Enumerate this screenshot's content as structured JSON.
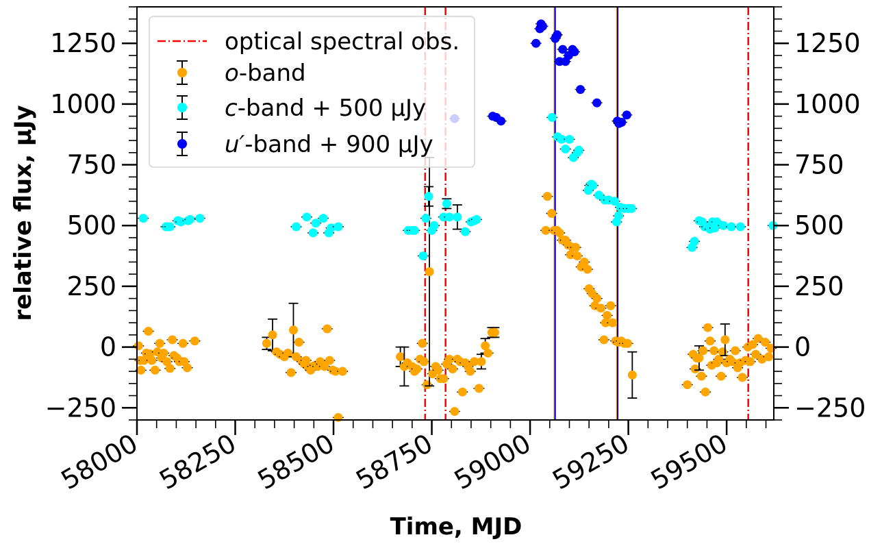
{
  "chart_data": {
    "type": "scatter",
    "xlabel": "Time, MJD",
    "ylabel": "relative flux, μJy",
    "xlim": [
      58000,
      59620
    ],
    "ylim": [
      -300,
      1400
    ],
    "x_ticks": [
      58000,
      58250,
      58500,
      58750,
      59000,
      59250,
      59500
    ],
    "y_ticks": [
      -250,
      0,
      250,
      500,
      750,
      1000,
      1250
    ],
    "legend_position": "top-left",
    "grid": false,
    "colors": {
      "o": "#ffa500",
      "c": "#00ffff",
      "u": "#0000ff",
      "spec": "#ff0000",
      "mark": "#0000ff"
    },
    "spectral_obs_label": "optical spectral obs.",
    "spectral_obs_mjd": [
      58733,
      58785,
      59555
    ],
    "vertical_lines_mjd": [
      59063,
      59222
    ],
    "series": [
      {
        "key": "o",
        "legend_pre": "",
        "legend_em": "o",
        "legend_post": "-band",
        "points": [
          [
            58004,
            5,
            10
          ],
          [
            58008,
            -55,
            10
          ],
          [
            58010,
            -95,
            10
          ],
          [
            58018,
            -55,
            10
          ],
          [
            58024,
            -25,
            10
          ],
          [
            58029,
            65,
            10
          ],
          [
            58033,
            -28,
            10
          ],
          [
            58038,
            -55,
            10
          ],
          [
            58046,
            -95,
            10
          ],
          [
            58052,
            -20,
            10
          ],
          [
            58058,
            15,
            10
          ],
          [
            58063,
            -45,
            10
          ],
          [
            58068,
            -25,
            10
          ],
          [
            58076,
            -60,
            10
          ],
          [
            58084,
            -88,
            10
          ],
          [
            58090,
            30,
            10
          ],
          [
            58094,
            -35,
            10
          ],
          [
            58102,
            -45,
            10
          ],
          [
            58108,
            -60,
            10
          ],
          [
            58117,
            15,
            10
          ],
          [
            58120,
            -60,
            10
          ],
          [
            58128,
            -85,
            10
          ],
          [
            58147,
            25,
            10
          ],
          [
            58330,
            15,
            25
          ],
          [
            58345,
            50,
            65
          ],
          [
            58355,
            -20,
            10
          ],
          [
            58364,
            -30,
            10
          ],
          [
            58375,
            -40,
            10
          ],
          [
            58384,
            -25,
            10
          ],
          [
            58392,
            -105,
            10
          ],
          [
            58398,
            70,
            110
          ],
          [
            58405,
            -40,
            10
          ],
          [
            58412,
            20,
            10
          ],
          [
            58420,
            -60,
            10
          ],
          [
            58426,
            -70,
            10
          ],
          [
            58430,
            -55,
            10
          ],
          [
            58436,
            -85,
            10
          ],
          [
            58442,
            -95,
            10
          ],
          [
            58447,
            -80,
            10
          ],
          [
            58453,
            -75,
            10
          ],
          [
            58460,
            -80,
            10
          ],
          [
            58466,
            -60,
            10
          ],
          [
            58470,
            -70,
            10
          ],
          [
            58477,
            -80,
            10
          ],
          [
            58484,
            75,
            10
          ],
          [
            58490,
            -55,
            10
          ],
          [
            58498,
            -95,
            10
          ],
          [
            58505,
            -100,
            15
          ],
          [
            58512,
            -290,
            12
          ],
          [
            58523,
            -100,
            15
          ],
          [
            58670,
            -40,
            40
          ],
          [
            58680,
            -80,
            80
          ],
          [
            58688,
            -65,
            10
          ],
          [
            58700,
            -80,
            10
          ],
          [
            58706,
            -100,
            10
          ],
          [
            58712,
            -90,
            10
          ],
          [
            58720,
            -50,
            10
          ],
          [
            58726,
            15,
            10
          ],
          [
            58730,
            -60,
            10
          ],
          [
            58738,
            -155,
            10
          ],
          [
            58744,
            310,
            470
          ],
          [
            58752,
            -110,
            10
          ],
          [
            58760,
            -80,
            10
          ],
          [
            58766,
            -95,
            10
          ],
          [
            58772,
            -130,
            10
          ],
          [
            58780,
            -130,
            10
          ],
          [
            58788,
            -70,
            10
          ],
          [
            58795,
            -50,
            10
          ],
          [
            58803,
            -90,
            10
          ],
          [
            58808,
            -265,
            10
          ],
          [
            58815,
            -50,
            10
          ],
          [
            58822,
            -60,
            10
          ],
          [
            58828,
            -185,
            10
          ],
          [
            58835,
            -65,
            10
          ],
          [
            58842,
            -80,
            10
          ],
          [
            58848,
            -100,
            10
          ],
          [
            58858,
            -60,
            10
          ],
          [
            58870,
            -170,
            10
          ],
          [
            58876,
            -60,
            30
          ],
          [
            58886,
            5,
            30
          ],
          [
            58893,
            -25,
            10
          ],
          [
            58903,
            60,
            20
          ],
          [
            58910,
            60,
            20
          ],
          [
            59040,
            480,
            10
          ],
          [
            59044,
            620,
            10
          ],
          [
            59055,
            550,
            10
          ],
          [
            59061,
            480,
            10
          ],
          [
            59068,
            480,
            10
          ],
          [
            59075,
            470,
            10
          ],
          [
            59082,
            440,
            10
          ],
          [
            59090,
            440,
            10
          ],
          [
            59097,
            420,
            10
          ],
          [
            59103,
            380,
            10
          ],
          [
            59108,
            410,
            10
          ],
          [
            59116,
            410,
            10
          ],
          [
            59120,
            375,
            10
          ],
          [
            59130,
            330,
            10
          ],
          [
            59138,
            350,
            10
          ],
          [
            59146,
            320,
            10
          ],
          [
            59150,
            240,
            10
          ],
          [
            59158,
            220,
            10
          ],
          [
            59165,
            170,
            10
          ],
          [
            59170,
            200,
            10
          ],
          [
            59180,
            160,
            10
          ],
          [
            59188,
            30,
            10
          ],
          [
            59192,
            100,
            10
          ],
          [
            59196,
            130,
            10
          ],
          [
            59205,
            170,
            10
          ],
          [
            59210,
            100,
            10
          ],
          [
            59218,
            25,
            10
          ],
          [
            59225,
            20,
            10
          ],
          [
            59232,
            25,
            10
          ],
          [
            59240,
            15,
            10
          ],
          [
            59248,
            15,
            10
          ],
          [
            59260,
            -115,
            95
          ],
          [
            59400,
            -155,
            10
          ],
          [
            59415,
            -30,
            10
          ],
          [
            59420,
            -90,
            10
          ],
          [
            59424,
            -45,
            10
          ],
          [
            59430,
            -45,
            50
          ],
          [
            59436,
            -120,
            10
          ],
          [
            59440,
            -15,
            10
          ],
          [
            59446,
            -185,
            10
          ],
          [
            59452,
            80,
            10
          ],
          [
            59458,
            25,
            10
          ],
          [
            59462,
            -75,
            10
          ],
          [
            59468,
            -15,
            10
          ],
          [
            59475,
            -65,
            10
          ],
          [
            59480,
            -50,
            10
          ],
          [
            59486,
            -120,
            10
          ],
          [
            59490,
            -20,
            10
          ],
          [
            59496,
            30,
            65
          ],
          [
            59500,
            -65,
            10
          ],
          [
            59508,
            -50,
            10
          ],
          [
            59514,
            -60,
            10
          ],
          [
            59522,
            -15,
            10
          ],
          [
            59528,
            -85,
            10
          ],
          [
            59534,
            -65,
            10
          ],
          [
            59540,
            -125,
            10
          ],
          [
            59548,
            -55,
            10
          ],
          [
            59554,
            0,
            10
          ],
          [
            59560,
            -60,
            10
          ],
          [
            59566,
            10,
            10
          ],
          [
            59574,
            -30,
            10
          ],
          [
            59580,
            35,
            10
          ],
          [
            59590,
            -50,
            10
          ],
          [
            59598,
            20,
            10
          ],
          [
            59607,
            -40,
            10
          ],
          [
            59613,
            -5,
            10
          ]
        ]
      },
      {
        "key": "c",
        "legend_pre": "",
        "legend_em": "c",
        "legend_post": "-band + 500 μJy",
        "points": [
          [
            58016,
            530,
            10
          ],
          [
            58074,
            495,
            10
          ],
          [
            58078,
            495,
            10
          ],
          [
            58084,
            495,
            10
          ],
          [
            58104,
            520,
            10
          ],
          [
            58112,
            515,
            10
          ],
          [
            58130,
            520,
            10
          ],
          [
            58135,
            525,
            10
          ],
          [
            58160,
            530,
            10
          ],
          [
            58405,
            495,
            10
          ],
          [
            58432,
            535,
            10
          ],
          [
            58448,
            470,
            10
          ],
          [
            58455,
            510,
            10
          ],
          [
            58474,
            530,
            10
          ],
          [
            58488,
            470,
            15
          ],
          [
            58494,
            490,
            10
          ],
          [
            58512,
            495,
            10
          ],
          [
            58690,
            480,
            10
          ],
          [
            58700,
            480,
            10
          ],
          [
            58706,
            480,
            10
          ],
          [
            58728,
            375,
            15
          ],
          [
            58735,
            530,
            10
          ],
          [
            58742,
            620,
            40
          ],
          [
            58750,
            480,
            10
          ],
          [
            58756,
            500,
            10
          ],
          [
            58780,
            535,
            10
          ],
          [
            58788,
            590,
            20
          ],
          [
            58795,
            535,
            10
          ],
          [
            58815,
            535,
            50
          ],
          [
            58835,
            475,
            10
          ],
          [
            58850,
            515,
            10
          ],
          [
            58858,
            520,
            10
          ],
          [
            58864,
            525,
            10
          ],
          [
            59056,
            945,
            10
          ],
          [
            59070,
            865,
            10
          ],
          [
            59080,
            855,
            10
          ],
          [
            59090,
            815,
            10
          ],
          [
            59100,
            855,
            10
          ],
          [
            59110,
            780,
            10
          ],
          [
            59120,
            800,
            10
          ],
          [
            59124,
            810,
            10
          ],
          [
            59148,
            645,
            10
          ],
          [
            59152,
            665,
            10
          ],
          [
            59156,
            670,
            10
          ],
          [
            59160,
            665,
            10
          ],
          [
            59175,
            625,
            10
          ],
          [
            59190,
            605,
            10
          ],
          [
            59200,
            605,
            10
          ],
          [
            59215,
            600,
            10
          ],
          [
            59220,
            515,
            10
          ],
          [
            59225,
            540,
            10
          ],
          [
            59230,
            575,
            10
          ],
          [
            59240,
            570,
            10
          ],
          [
            59250,
            570,
            10
          ],
          [
            59258,
            570,
            10
          ],
          [
            59412,
            410,
            10
          ],
          [
            59418,
            435,
            10
          ],
          [
            59430,
            520,
            10
          ],
          [
            59438,
            515,
            10
          ],
          [
            59444,
            495,
            10
          ],
          [
            59450,
            495,
            10
          ],
          [
            59458,
            485,
            10
          ],
          [
            59464,
            515,
            10
          ],
          [
            59470,
            490,
            10
          ],
          [
            59475,
            515,
            10
          ],
          [
            59492,
            500,
            10
          ],
          [
            59512,
            495,
            10
          ],
          [
            59535,
            495,
            10
          ],
          [
            59618,
            500,
            10
          ]
        ]
      },
      {
        "key": "u",
        "legend_pre": "",
        "legend_em": "u′",
        "legend_post": "-band + 900 μJy",
        "points": [
          [
            58808,
            940,
            10
          ],
          [
            58905,
            950,
            10
          ],
          [
            58914,
            945,
            10
          ],
          [
            58926,
            930,
            10
          ],
          [
            59015,
            1250,
            10
          ],
          [
            59025,
            1310,
            10
          ],
          [
            59028,
            1330,
            10
          ],
          [
            59032,
            1320,
            10
          ],
          [
            59064,
            1270,
            10
          ],
          [
            59069,
            1285,
            10
          ],
          [
            59075,
            1175,
            10
          ],
          [
            59083,
            1225,
            10
          ],
          [
            59090,
            1175,
            10
          ],
          [
            59098,
            1200,
            10
          ],
          [
            59108,
            1225,
            10
          ],
          [
            59113,
            1215,
            10
          ],
          [
            59128,
            1060,
            10
          ],
          [
            59170,
            1005,
            10
          ],
          [
            59222,
            930,
            10
          ],
          [
            59226,
            920,
            10
          ],
          [
            59233,
            925,
            10
          ],
          [
            59246,
            955,
            10
          ]
        ]
      }
    ]
  }
}
